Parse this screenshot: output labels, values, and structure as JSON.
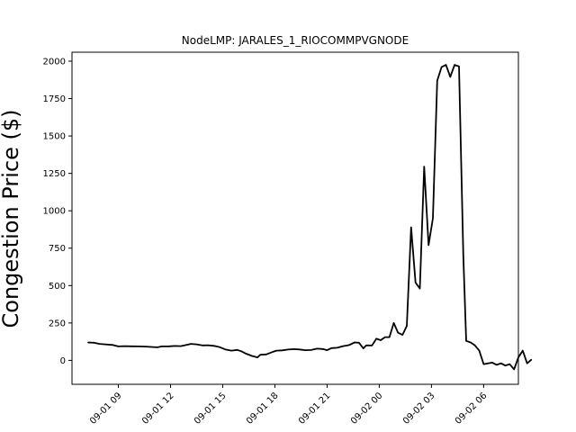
{
  "chart_data": {
    "type": "line",
    "title": "NodeLMP: JARALES_1_RIOCOMMPVGNODE",
    "xlabel": "",
    "ylabel": "Congestion Price ($)",
    "x_range": [
      "2021-09-01 06:20",
      "2021-09-02 08:00"
    ],
    "ylim": [
      -160,
      2060
    ],
    "y_ticks": [
      0,
      250,
      500,
      750,
      1000,
      1250,
      1500,
      1750,
      2000
    ],
    "x_ticks": [
      {
        "t": "2021-09-01 09:00",
        "label": "09-01 09"
      },
      {
        "t": "2021-09-01 12:00",
        "label": "09-01 12"
      },
      {
        "t": "2021-09-01 15:00",
        "label": "09-01 15"
      },
      {
        "t": "2021-09-01 18:00",
        "label": "09-01 18"
      },
      {
        "t": "2021-09-01 21:00",
        "label": "09-01 21"
      },
      {
        "t": "2021-09-02 00:00",
        "label": "09-02 00"
      },
      {
        "t": "2021-09-02 03:00",
        "label": "09-02 03"
      },
      {
        "t": "2021-09-02 06:00",
        "label": "09-02 06"
      }
    ],
    "grid": false,
    "series": [
      {
        "color": "#000000",
        "points": [
          [
            "2021-09-01 07:15",
            120
          ],
          [
            "2021-09-01 07:35",
            118
          ],
          [
            "2021-09-01 07:55",
            110
          ],
          [
            "2021-09-01 08:15",
            107
          ],
          [
            "2021-09-01 08:40",
            103
          ],
          [
            "2021-09-01 09:00",
            93
          ],
          [
            "2021-09-01 09:20",
            95
          ],
          [
            "2021-09-01 09:45",
            94
          ],
          [
            "2021-09-01 10:10",
            93
          ],
          [
            "2021-09-01 10:35",
            92
          ],
          [
            "2021-09-01 11:00",
            89
          ],
          [
            "2021-09-01 11:15",
            87
          ],
          [
            "2021-09-01 11:30",
            93
          ],
          [
            "2021-09-01 11:55",
            94
          ],
          [
            "2021-09-01 12:15",
            96
          ],
          [
            "2021-09-01 12:35",
            95
          ],
          [
            "2021-09-01 12:55",
            103
          ],
          [
            "2021-09-01 13:10",
            110
          ],
          [
            "2021-09-01 13:30",
            107
          ],
          [
            "2021-09-01 13:50",
            100
          ],
          [
            "2021-09-01 14:10",
            101
          ],
          [
            "2021-09-01 14:30",
            97
          ],
          [
            "2021-09-01 14:50",
            88
          ],
          [
            "2021-09-01 15:10",
            72
          ],
          [
            "2021-09-01 15:30",
            65
          ],
          [
            "2021-09-01 15:50",
            70
          ],
          [
            "2021-09-01 16:05",
            60
          ],
          [
            "2021-09-01 16:20",
            45
          ],
          [
            "2021-09-01 16:40",
            30
          ],
          [
            "2021-09-01 17:00",
            20
          ],
          [
            "2021-09-01 17:10",
            38
          ],
          [
            "2021-09-01 17:30",
            40
          ],
          [
            "2021-09-01 17:50",
            55
          ],
          [
            "2021-09-01 18:05",
            65
          ],
          [
            "2021-09-01 18:25",
            67
          ],
          [
            "2021-09-01 18:45",
            72
          ],
          [
            "2021-09-01 19:05",
            75
          ],
          [
            "2021-09-01 19:25",
            73
          ],
          [
            "2021-09-01 19:45",
            68
          ],
          [
            "2021-09-01 20:05",
            69
          ],
          [
            "2021-09-01 20:25",
            78
          ],
          [
            "2021-09-01 20:45",
            76
          ],
          [
            "2021-09-01 21:00",
            68
          ],
          [
            "2021-09-01 21:15",
            82
          ],
          [
            "2021-09-01 21:35",
            84
          ],
          [
            "2021-09-01 21:55",
            95
          ],
          [
            "2021-09-01 22:15",
            102
          ],
          [
            "2021-09-01 22:35",
            120
          ],
          [
            "2021-09-01 22:50",
            118
          ],
          [
            "2021-09-01 23:05",
            80
          ],
          [
            "2021-09-01 23:15",
            100
          ],
          [
            "2021-09-01 23:35",
            100
          ],
          [
            "2021-09-01 23:50",
            145
          ],
          [
            "2021-09-02 00:05",
            135
          ],
          [
            "2021-09-02 00:20",
            155
          ],
          [
            "2021-09-02 00:35",
            155
          ],
          [
            "2021-09-02 00:50",
            250
          ],
          [
            "2021-09-02 01:05",
            185
          ],
          [
            "2021-09-02 01:20",
            170
          ],
          [
            "2021-09-02 01:35",
            230
          ],
          [
            "2021-09-02 01:50",
            890
          ],
          [
            "2021-09-02 02:05",
            520
          ],
          [
            "2021-09-02 02:20",
            480
          ],
          [
            "2021-09-02 02:35",
            1295
          ],
          [
            "2021-09-02 02:50",
            770
          ],
          [
            "2021-09-02 03:05",
            950
          ],
          [
            "2021-09-02 03:20",
            1870
          ],
          [
            "2021-09-02 03:35",
            1960
          ],
          [
            "2021-09-02 03:50",
            1975
          ],
          [
            "2021-09-02 04:05",
            1895
          ],
          [
            "2021-09-02 04:20",
            1975
          ],
          [
            "2021-09-02 04:35",
            1965
          ],
          [
            "2021-09-02 04:50",
            700
          ],
          [
            "2021-09-02 05:00",
            130
          ],
          [
            "2021-09-02 05:15",
            120
          ],
          [
            "2021-09-02 05:30",
            100
          ],
          [
            "2021-09-02 05:45",
            65
          ],
          [
            "2021-09-02 06:00",
            -25
          ],
          [
            "2021-09-02 06:15",
            -20
          ],
          [
            "2021-09-02 06:30",
            -15
          ],
          [
            "2021-09-02 06:45",
            -30
          ],
          [
            "2021-09-02 07:00",
            -20
          ],
          [
            "2021-09-02 07:15",
            -35
          ],
          [
            "2021-09-02 07:30",
            -25
          ],
          [
            "2021-09-02 07:45",
            -60
          ],
          [
            "2021-09-02 08:00",
            20
          ],
          [
            "2021-09-02 08:15",
            65
          ],
          [
            "2021-09-02 08:30",
            -20
          ],
          [
            "2021-09-02 08:45",
            5
          ]
        ]
      }
    ]
  }
}
